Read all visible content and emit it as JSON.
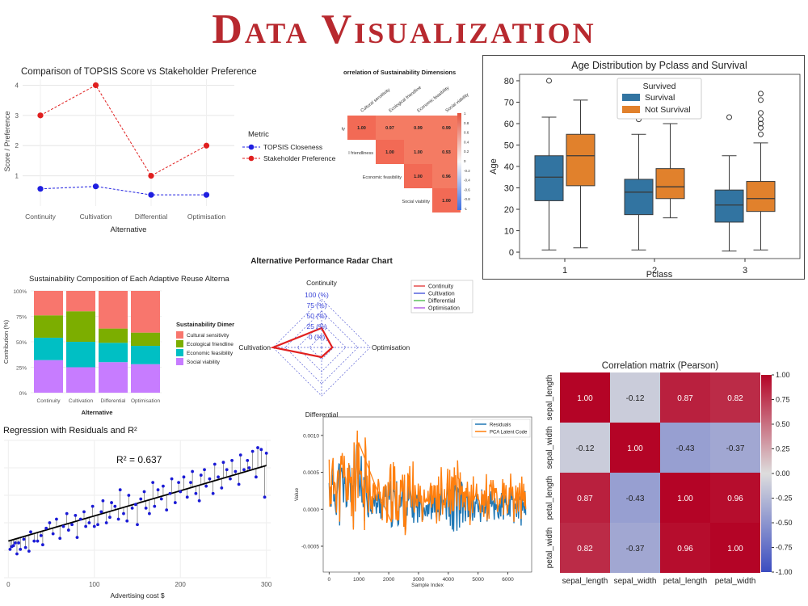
{
  "page": {
    "title": "Data Visualization"
  },
  "chart_data": [
    {
      "id": "topsis",
      "type": "line",
      "title": "Comparison of TOPSIS Score vs Stakeholder Preference",
      "xlabel": "Alternative",
      "ylabel": "Score / Preference",
      "categories": [
        "Continuity",
        "Cultivation",
        "Differential",
        "Optimisation"
      ],
      "yticks": [
        "1",
        "2",
        "3",
        "4"
      ],
      "ylim": [
        0,
        4.2
      ],
      "legend_title": "Metric",
      "series": [
        {
          "name": "TOPSIS Closeness",
          "values": [
            0.57,
            0.65,
            0.37,
            0.37
          ],
          "color": "#1f1fe0"
        },
        {
          "name": "Stakeholder Preference",
          "values": [
            3,
            4,
            1,
            2
          ],
          "color": "#e01f1f"
        }
      ]
    },
    {
      "id": "sustain-corr",
      "type": "heatmap",
      "title": "orrelation of Sustainability Dimensions",
      "col_labels": [
        "Cultural sensitivity",
        "Ecological friendline",
        "Economic feasibility",
        "Social viability"
      ],
      "row_labels": [
        "ty",
        "l friendliness",
        "Economic feasibility",
        "Social viability"
      ],
      "matrix": [
        [
          "1.00",
          "0.97",
          "0.99",
          "0.99"
        ],
        [
          "",
          "1.00",
          "1.00",
          "0.93"
        ],
        [
          "",
          "",
          "1.00",
          "0.96"
        ],
        [
          "",
          "",
          "",
          "1.00"
        ]
      ],
      "colorbar_ticks": [
        "1",
        "0.8",
        "0.6",
        "0.4",
        "0.2",
        "0",
        "-0.2",
        "-0.4",
        "-0.6",
        "-0.8",
        "-1"
      ]
    },
    {
      "id": "age-boxplot",
      "type": "box",
      "title": "Age Distribution by Pclass and Survival",
      "xlabel": "Pclass",
      "ylabel": "Age",
      "categories": [
        "1",
        "2",
        "3"
      ],
      "ylim": [
        -3,
        83
      ],
      "yticks": [
        0,
        10,
        20,
        30,
        40,
        50,
        60,
        70,
        80
      ],
      "legend_title": "Survived",
      "series": [
        {
          "name": "Survival",
          "color": "#3274a1",
          "boxes": [
            {
              "min": 1,
              "q1": 24,
              "median": 35,
              "q3": 45,
              "max": 63,
              "outliers": [
                80
              ]
            },
            {
              "min": 1,
              "q1": 17.5,
              "median": 28,
              "q3": 34,
              "max": 55,
              "outliers": [
                62
              ]
            },
            {
              "min": 0.5,
              "q1": 14,
              "median": 22,
              "q3": 29,
              "max": 45,
              "outliers": [
                63
              ]
            }
          ]
        },
        {
          "name": "Not Survival",
          "color": "#e1812c",
          "boxes": [
            {
              "min": 2,
              "q1": 31,
              "median": 45,
              "q3": 55,
              "max": 71,
              "outliers": []
            },
            {
              "min": 16,
              "q1": 25,
              "median": 30.5,
              "q3": 39,
              "max": 60,
              "outliers": [
                66
              ]
            },
            {
              "min": 1,
              "q1": 19,
              "median": 25,
              "q3": 33,
              "max": 51,
              "outliers": [
                55,
                58,
                60,
                62,
                65,
                71,
                74
              ]
            }
          ]
        }
      ]
    },
    {
      "id": "composition",
      "type": "bar",
      "stacked": true,
      "title": "Sustainability Composition of Each Adaptive Reuse Alterna",
      "xlabel": "Alternative",
      "ylabel": "Contribution (%)",
      "categories": [
        "Continuity",
        "Cultivation",
        "Differential",
        "Optimisation"
      ],
      "yticks": [
        "0%",
        "25%",
        "50%",
        "75%",
        "100%"
      ],
      "legend_title": "Sustainability Dimer",
      "series": [
        {
          "name": "Social viability",
          "color": "#c77cff",
          "values": [
            32,
            25,
            30,
            28
          ]
        },
        {
          "name": "Economic feasibility",
          "color": "#00bfc4",
          "values": [
            22,
            25,
            19,
            18
          ]
        },
        {
          "name": "Ecological friendline",
          "color": "#7cae00",
          "values": [
            22,
            30,
            14,
            13
          ]
        },
        {
          "name": "Cultural sensitivity",
          "color": "#f8766d",
          "values": [
            24,
            20,
            37,
            41
          ]
        }
      ]
    },
    {
      "id": "radar",
      "type": "radar",
      "title": "Alternative Performance Radar Chart",
      "axes": [
        "Continuity",
        "Optimisation",
        "Differential",
        "Cultivation"
      ],
      "ring_labels": [
        "0 (%)",
        "25 (%)",
        "50 (%)",
        "75 (%)",
        "100 (%)"
      ],
      "series": [
        {
          "name": "Continuity",
          "color": "#e02020",
          "values": [
            40,
            22,
            20,
            100
          ]
        },
        {
          "name": "Cultivation",
          "color": "#2a3bd6",
          "values": []
        },
        {
          "name": "Differential",
          "color": "#33b233",
          "values": []
        },
        {
          "name": "Optimisation",
          "color": "#a23bdb",
          "values": []
        }
      ]
    },
    {
      "id": "regression",
      "type": "scatter",
      "title": "Regression with Residuals and R²",
      "xlabel": "Advertising cost $",
      "xlim": [
        -5,
        305
      ],
      "ylim": [
        0,
        150
      ],
      "xticks": [
        0,
        100,
        200,
        300
      ],
      "annotation": "R² = 0.637",
      "line": {
        "intercept": 40,
        "slope": 0.275,
        "color": "#000000"
      },
      "points_color": "#1a1ad6",
      "points": [
        [
          2,
          31
        ],
        [
          4,
          34
        ],
        [
          6,
          35
        ],
        [
          8,
          38
        ],
        [
          10,
          26
        ],
        [
          12,
          38
        ],
        [
          14,
          31
        ],
        [
          18,
          42
        ],
        [
          20,
          33
        ],
        [
          24,
          29
        ],
        [
          26,
          50
        ],
        [
          30,
          40
        ],
        [
          34,
          40
        ],
        [
          38,
          46
        ],
        [
          40,
          36
        ],
        [
          44,
          54
        ],
        [
          48,
          60
        ],
        [
          52,
          48
        ],
        [
          56,
          64
        ],
        [
          60,
          43
        ],
        [
          64,
          56
        ],
        [
          68,
          70
        ],
        [
          70,
          52
        ],
        [
          74,
          58
        ],
        [
          78,
          68
        ],
        [
          80,
          44
        ],
        [
          84,
          64
        ],
        [
          88,
          72
        ],
        [
          90,
          56
        ],
        [
          94,
          60
        ],
        [
          98,
          78
        ],
        [
          100,
          56
        ],
        [
          104,
          58
        ],
        [
          108,
          72
        ],
        [
          110,
          84
        ],
        [
          114,
          60
        ],
        [
          118,
          66
        ],
        [
          120,
          82
        ],
        [
          124,
          78
        ],
        [
          128,
          64
        ],
        [
          130,
          96
        ],
        [
          134,
          70
        ],
        [
          138,
          62
        ],
        [
          140,
          90
        ],
        [
          144,
          76
        ],
        [
          148,
          80
        ],
        [
          150,
          58
        ],
        [
          154,
          86
        ],
        [
          158,
          94
        ],
        [
          160,
          76
        ],
        [
          164,
          70
        ],
        [
          168,
          104
        ],
        [
          170,
          78
        ],
        [
          174,
          96
        ],
        [
          178,
          86
        ],
        [
          180,
          100
        ],
        [
          184,
          74
        ],
        [
          188,
          92
        ],
        [
          190,
          108
        ],
        [
          194,
          82
        ],
        [
          198,
          104
        ],
        [
          200,
          94
        ],
        [
          204,
          110
        ],
        [
          208,
          88
        ],
        [
          212,
          104
        ],
        [
          214,
          116
        ],
        [
          218,
          92
        ],
        [
          222,
          84
        ],
        [
          224,
          112
        ],
        [
          228,
          118
        ],
        [
          230,
          100
        ],
        [
          234,
          108
        ],
        [
          238,
          92
        ],
        [
          240,
          124
        ],
        [
          244,
          110
        ],
        [
          248,
          98
        ],
        [
          250,
          126
        ],
        [
          254,
          118
        ],
        [
          258,
          108
        ],
        [
          260,
          128
        ],
        [
          264,
          116
        ],
        [
          268,
          102
        ],
        [
          270,
          134
        ],
        [
          274,
          118
        ],
        [
          278,
          128
        ],
        [
          280,
          120
        ],
        [
          284,
          138
        ],
        [
          288,
          110
        ],
        [
          290,
          142
        ],
        [
          294,
          140
        ],
        [
          298,
          88
        ],
        [
          300,
          136
        ]
      ]
    },
    {
      "id": "residuals",
      "type": "line",
      "xlabel": "Sample Index",
      "ylabel": "Value",
      "xlim": [
        -200,
        6800
      ],
      "ylim": [
        -0.00085,
        0.00125
      ],
      "xticks": [
        0,
        1000,
        2000,
        3000,
        4000,
        5000,
        6000
      ],
      "yticks": [
        "-0.0005",
        "0.0000",
        "0.0005",
        "0.0010"
      ],
      "ytick_values": [
        -0.0005,
        0,
        0.0005,
        0.001
      ],
      "series": [
        {
          "name": "Residuals",
          "color": "#1f77b4"
        },
        {
          "name": "PCA Latent Code",
          "color": "#ff7f0e"
        }
      ]
    },
    {
      "id": "iris-corr",
      "type": "heatmap",
      "title": "Correlation matrix (Pearson)",
      "labels": [
        "sepal_length",
        "sepal_width",
        "petal_length",
        "petal_width"
      ],
      "matrix": [
        [
          1.0,
          -0.12,
          0.87,
          0.82
        ],
        [
          -0.12,
          1.0,
          -0.43,
          -0.37
        ],
        [
          0.87,
          -0.43,
          1.0,
          0.96
        ],
        [
          0.82,
          -0.37,
          0.96,
          1.0
        ]
      ],
      "cell_text": [
        [
          "1.00",
          "-0.12",
          "0.87",
          "0.82"
        ],
        [
          "-0.12",
          "1.00",
          "-0.43",
          "-0.37"
        ],
        [
          "0.87",
          "-0.43",
          "1.00",
          "0.96"
        ],
        [
          "0.82",
          "-0.37",
          "0.96",
          "1.00"
        ]
      ],
      "colorbar_ticks": [
        "1.00",
        "0.75",
        "0.50",
        "0.25",
        "0.00",
        "-0.25",
        "-0.50",
        "-0.75",
        "-1.00"
      ],
      "colorbar_values": [
        1,
        0.75,
        0.5,
        0.25,
        0,
        -0.25,
        -0.5,
        -0.75,
        -1
      ]
    }
  ]
}
